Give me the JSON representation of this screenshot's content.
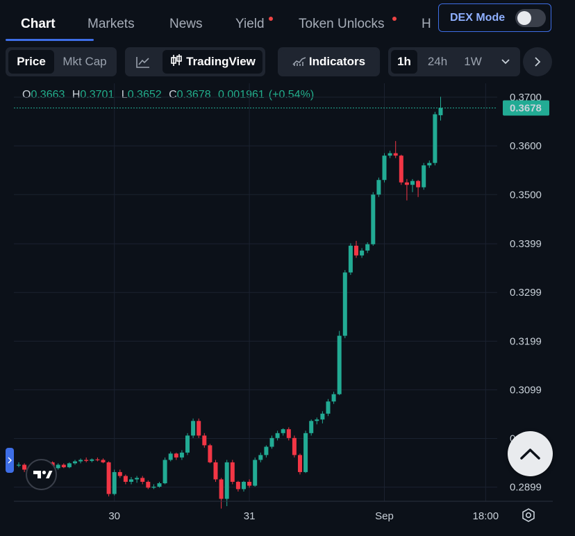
{
  "tabs": {
    "items": [
      "Chart",
      "Markets",
      "News",
      "Yield",
      "Token Unlocks",
      "H"
    ],
    "active": "Chart"
  },
  "dex_mode": {
    "label": "DEX Mode",
    "enabled": false
  },
  "toolbar": {
    "price_label": "Price",
    "mktcap_label": "Mkt Cap",
    "tradingview_label": "TradingView",
    "indicators_label": "Indicators",
    "intervals": [
      "1h",
      "24h",
      "1W"
    ],
    "selected_interval": "1h"
  },
  "ohlc": {
    "o_key": "O",
    "o": "0.3663",
    "h_key": "H",
    "h": "0.3701",
    "l_key": "L",
    "l": "0.3652",
    "c_key": "C",
    "c": "0.3678",
    "change": "0.001961",
    "change_pct": "(+0.54%)"
  },
  "colors": {
    "up": "#22ab94",
    "down": "#f23645",
    "accent": "#3e6ee6",
    "background": "#0c1119"
  },
  "chart_data": {
    "type": "candlestick",
    "y_ticks": [
      "0.3700",
      "0.3600",
      "0.3500",
      "0.3399",
      "0.3299",
      "0.3199",
      "0.3099",
      "0.2999",
      "0.2899"
    ],
    "x_ticks": [
      {
        "label": "30",
        "index": 17
      },
      {
        "label": "31",
        "index": 41
      },
      {
        "label": "Sep",
        "index": 65
      },
      {
        "label": "18:00",
        "index": 83
      }
    ],
    "ylim": [
      0.287,
      0.372
    ],
    "grid": true,
    "last_price": "0.3678",
    "last_value": 0.3678,
    "candles": [
      [
        0.2945,
        0.295,
        0.294,
        0.2945
      ],
      [
        0.2945,
        0.2948,
        0.293,
        0.2935
      ],
      [
        0.2935,
        0.2938,
        0.2925,
        0.293
      ],
      [
        0.293,
        0.2935,
        0.2925,
        0.293
      ],
      [
        0.293,
        0.2937,
        0.2925,
        0.2932
      ],
      [
        0.2932,
        0.2955,
        0.293,
        0.295
      ],
      [
        0.295,
        0.2952,
        0.2935,
        0.2938
      ],
      [
        0.2938,
        0.2948,
        0.2935,
        0.2945
      ],
      [
        0.2945,
        0.2948,
        0.2938,
        0.294
      ],
      [
        0.294,
        0.295,
        0.2938,
        0.2948
      ],
      [
        0.2948,
        0.2955,
        0.2945,
        0.2952
      ],
      [
        0.2952,
        0.2958,
        0.2948,
        0.2955
      ],
      [
        0.2955,
        0.296,
        0.295,
        0.2953
      ],
      [
        0.2953,
        0.2958,
        0.295,
        0.2956
      ],
      [
        0.2956,
        0.296,
        0.2952,
        0.2955
      ],
      [
        0.2955,
        0.2958,
        0.2948,
        0.295
      ],
      [
        0.295,
        0.2952,
        0.288,
        0.2885
      ],
      [
        0.2885,
        0.2935,
        0.2882,
        0.293
      ],
      [
        0.293,
        0.2935,
        0.2918,
        0.2922
      ],
      [
        0.2922,
        0.2925,
        0.2905,
        0.291
      ],
      [
        0.291,
        0.292,
        0.2905,
        0.2915
      ],
      [
        0.2915,
        0.2922,
        0.2908,
        0.2918
      ],
      [
        0.2918,
        0.2922,
        0.2905,
        0.291
      ],
      [
        0.291,
        0.2913,
        0.2895,
        0.2898
      ],
      [
        0.2898,
        0.2905,
        0.2895,
        0.29
      ],
      [
        0.29,
        0.291,
        0.2898,
        0.2907
      ],
      [
        0.2907,
        0.296,
        0.2905,
        0.2955
      ],
      [
        0.2955,
        0.2972,
        0.2952,
        0.2968
      ],
      [
        0.2968,
        0.297,
        0.2955,
        0.296
      ],
      [
        0.296,
        0.2975,
        0.2955,
        0.297
      ],
      [
        0.297,
        0.301,
        0.2965,
        0.3005
      ],
      [
        0.3005,
        0.304,
        0.3,
        0.3035
      ],
      [
        0.3035,
        0.304,
        0.3,
        0.3005
      ],
      [
        0.3005,
        0.301,
        0.298,
        0.2985
      ],
      [
        0.2985,
        0.2988,
        0.2948,
        0.295
      ],
      [
        0.295,
        0.2955,
        0.291,
        0.2915
      ],
      [
        0.2915,
        0.2918,
        0.2855,
        0.2875
      ],
      [
        0.2875,
        0.2955,
        0.286,
        0.295
      ],
      [
        0.295,
        0.2955,
        0.2905,
        0.291
      ],
      [
        0.291,
        0.2912,
        0.289,
        0.2895
      ],
      [
        0.2895,
        0.2912,
        0.289,
        0.291
      ],
      [
        0.291,
        0.2915,
        0.2898,
        0.2902
      ],
      [
        0.2902,
        0.296,
        0.29,
        0.2955
      ],
      [
        0.2955,
        0.297,
        0.295,
        0.2965
      ],
      [
        0.2965,
        0.2985,
        0.296,
        0.2982
      ],
      [
        0.2982,
        0.3005,
        0.2978,
        0.3
      ],
      [
        0.3,
        0.3015,
        0.2995,
        0.301
      ],
      [
        0.301,
        0.302,
        0.3005,
        0.3018
      ],
      [
        0.3018,
        0.3022,
        0.2995,
        0.3
      ],
      [
        0.3,
        0.3005,
        0.296,
        0.2965
      ],
      [
        0.2965,
        0.2968,
        0.2925,
        0.293
      ],
      [
        0.293,
        0.3015,
        0.2928,
        0.301
      ],
      [
        0.301,
        0.3038,
        0.3005,
        0.3035
      ],
      [
        0.3035,
        0.3042,
        0.3028,
        0.3038
      ],
      [
        0.3038,
        0.3055,
        0.303,
        0.305
      ],
      [
        0.305,
        0.308,
        0.3045,
        0.3075
      ],
      [
        0.3075,
        0.3095,
        0.307,
        0.309
      ],
      [
        0.309,
        0.322,
        0.3088,
        0.321
      ],
      [
        0.321,
        0.3345,
        0.3205,
        0.334
      ],
      [
        0.334,
        0.34,
        0.3335,
        0.3395
      ],
      [
        0.3395,
        0.3405,
        0.337,
        0.3375
      ],
      [
        0.3375,
        0.339,
        0.337,
        0.3385
      ],
      [
        0.3385,
        0.3402,
        0.338,
        0.3398
      ],
      [
        0.3398,
        0.3505,
        0.3395,
        0.35
      ],
      [
        0.35,
        0.3535,
        0.3495,
        0.353
      ],
      [
        0.353,
        0.3585,
        0.3525,
        0.358
      ],
      [
        0.358,
        0.359,
        0.3575,
        0.3585
      ],
      [
        0.3585,
        0.361,
        0.3575,
        0.358
      ],
      [
        0.358,
        0.3582,
        0.352,
        0.3525
      ],
      [
        0.3525,
        0.3532,
        0.3488,
        0.352
      ],
      [
        0.352,
        0.3532,
        0.3505,
        0.3528
      ],
      [
        0.3528,
        0.353,
        0.3495,
        0.3515
      ],
      [
        0.3515,
        0.3565,
        0.351,
        0.356
      ],
      [
        0.356,
        0.357,
        0.3555,
        0.3565
      ],
      [
        0.3565,
        0.367,
        0.356,
        0.3665
      ],
      [
        0.3663,
        0.3701,
        0.3652,
        0.3678
      ]
    ]
  }
}
